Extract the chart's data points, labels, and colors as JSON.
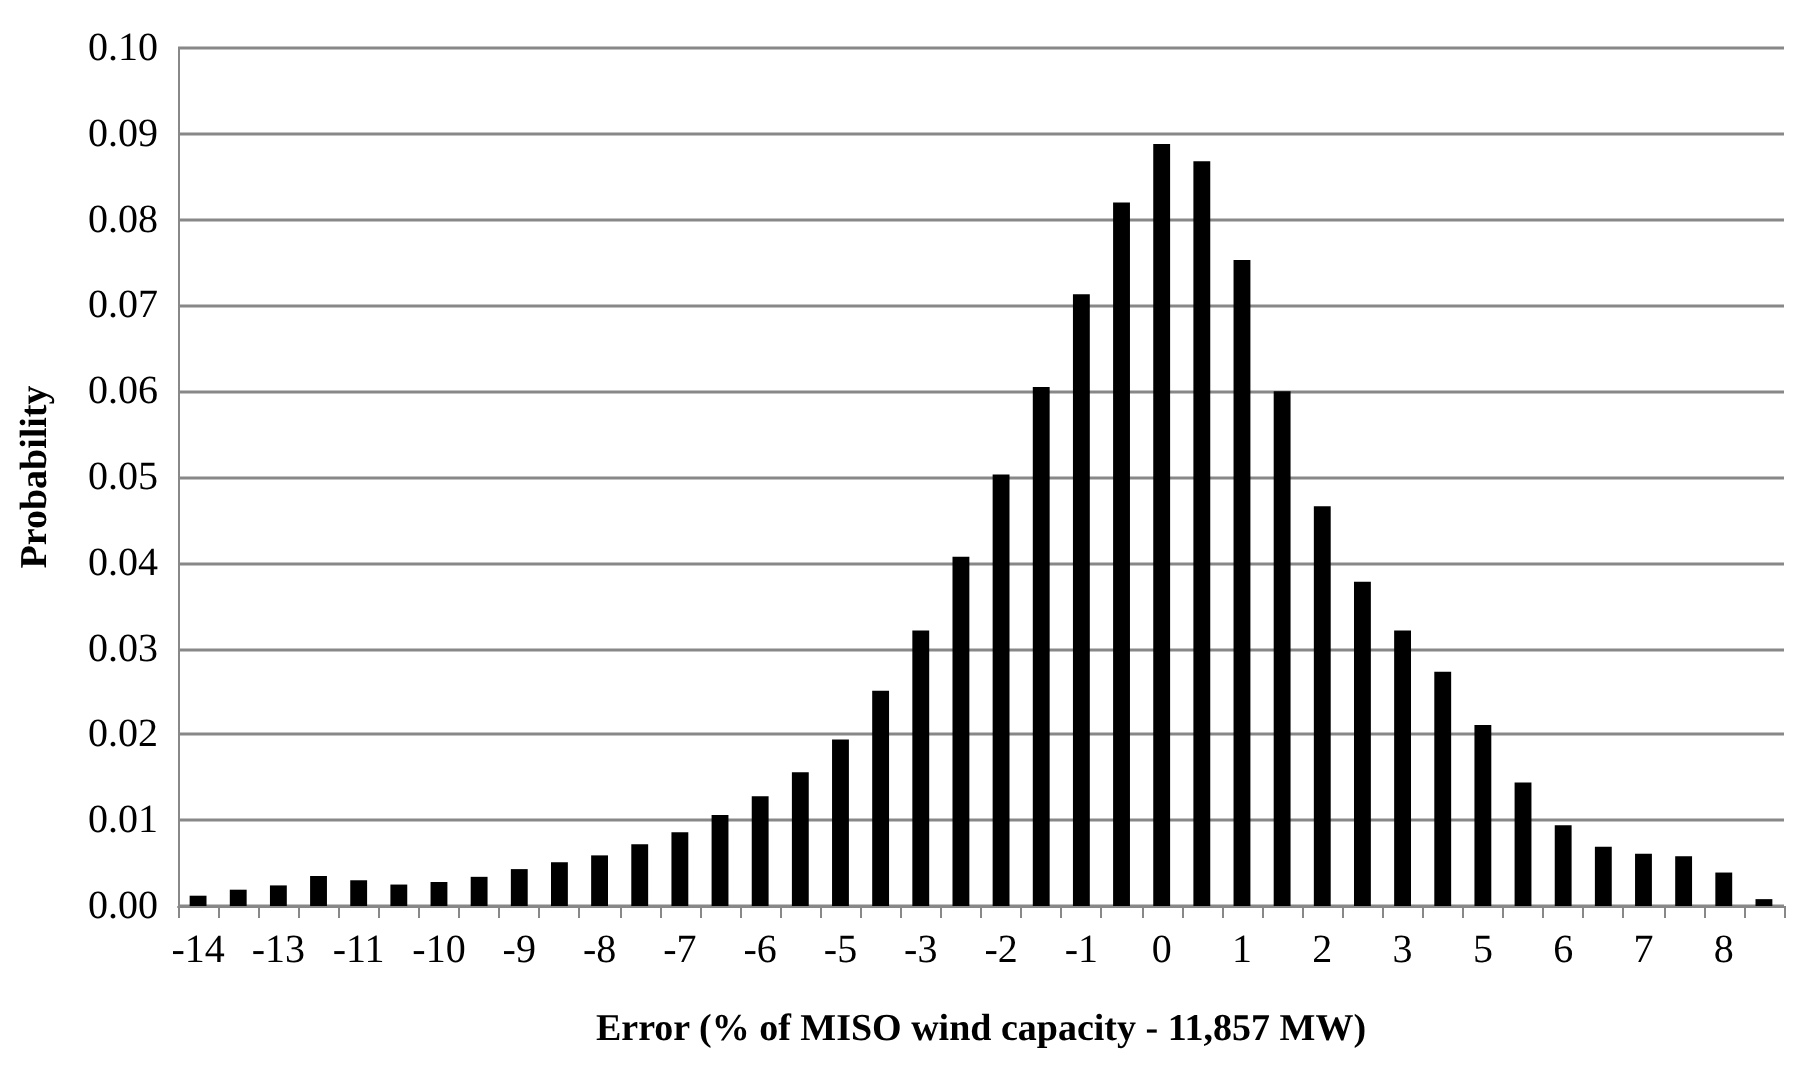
{
  "chart_data": {
    "type": "bar",
    "xlabel": "Error (% of MISO wind capacity - 11,857 MW)",
    "ylabel": "Probability",
    "categories": [
      "-14",
      null,
      "-13",
      null,
      "-11",
      null,
      "-10",
      null,
      "-9",
      null,
      "-8",
      null,
      "-7",
      null,
      "-6",
      null,
      "-5",
      null,
      "-3",
      null,
      "-2",
      null,
      "-1",
      null,
      "0",
      null,
      "1",
      null,
      "2",
      null,
      "3",
      null,
      "5",
      null,
      "6",
      null,
      "7",
      null,
      "8",
      null
    ],
    "series": [
      {
        "color": "#000000",
        "values": [
          0.0012,
          0.0019,
          0.0024,
          0.0035,
          0.003,
          0.0025,
          0.0028,
          0.0034,
          0.0043,
          0.0051,
          0.0059,
          0.0072,
          0.0086,
          0.0106,
          0.0128,
          0.0156,
          0.0194,
          0.0251,
          0.0321,
          0.0407,
          0.0503,
          0.0605,
          0.0713,
          0.082,
          0.0888,
          0.0868,
          0.0753,
          0.06,
          0.0466,
          0.0378,
          0.0321,
          0.0273,
          0.0211,
          0.0144,
          0.0094,
          0.0069,
          0.0061,
          0.0058,
          0.0039,
          0.0008
        ]
      }
    ],
    "ylim": [
      0,
      0.1
    ],
    "yticks": [
      {
        "value": 0,
        "label": "0.00"
      },
      0.01,
      0.02,
      0.03,
      0.04,
      0.05,
      0.06,
      0.07,
      0.08,
      0.09,
      {
        "value": 0.1,
        "label": "0.10"
      }
    ],
    "grid": "y"
  }
}
